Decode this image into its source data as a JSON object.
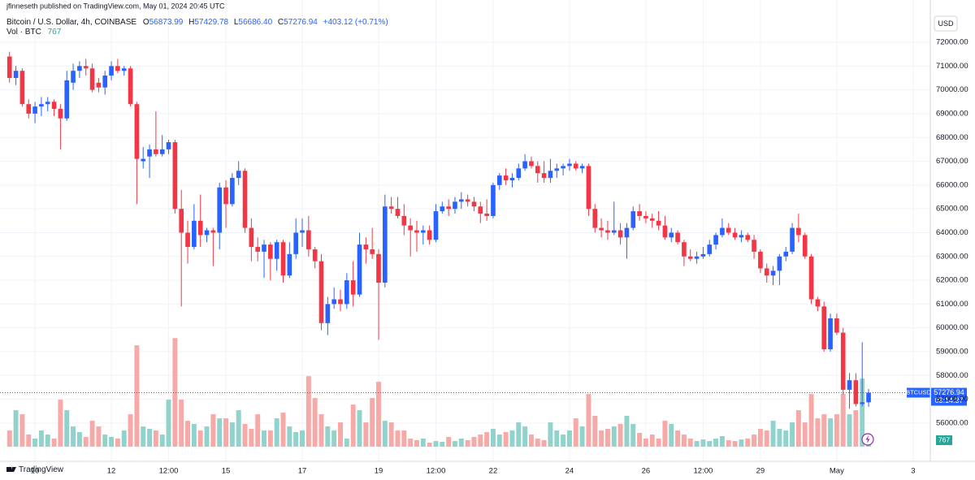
{
  "author_line": "jfinneseth published on TradingView.com, May 01, 2024 20:45 UTC",
  "brand": "TradingView",
  "chart_data": {
    "type": "candlestick",
    "title": "Bitcoin / U.S. Dollar, 4h, COINBASE",
    "ohlc_letters": [
      "O",
      "H",
      "L",
      "C"
    ],
    "last_value_labels": [
      "56873.99",
      "57429.78",
      "56686.40",
      "57276.94"
    ],
    "change": "+403.12 (+0.71%)",
    "volume_title": "Vol · BTC",
    "symbol": "BTCUSD",
    "countdown": "03:14:37",
    "currency": "USD",
    "up_color": "#2962ff",
    "down_color": "#f23645",
    "up_volume_color": "#92d2cc",
    "down_volume_color": "#f7a9a7",
    "grid": true,
    "xlim": [
      -1.5,
      144.7
    ],
    "ylim": [
      55008,
      73365
    ],
    "volume_lim": [
      0,
      25000
    ],
    "xticks": [
      {
        "value": 4,
        "label": "10"
      },
      {
        "value": 16,
        "label": "12"
      },
      {
        "value": 25,
        "label": "12:00"
      },
      {
        "value": 34,
        "label": "15"
      },
      {
        "value": 46,
        "label": "17"
      },
      {
        "value": 58,
        "label": "19"
      },
      {
        "value": 67,
        "label": "12:00"
      },
      {
        "value": 76,
        "label": "22"
      },
      {
        "value": 88,
        "label": "24"
      },
      {
        "value": 100,
        "label": "26"
      },
      {
        "value": 109,
        "label": "12:00"
      },
      {
        "value": 118,
        "label": "29"
      },
      {
        "value": 130,
        "label": "May"
      },
      {
        "value": 142,
        "label": "3"
      }
    ],
    "yticks": [
      {
        "value": 56000,
        "label": "56000.00"
      },
      {
        "value": 57000,
        "label": "57000.00"
      },
      {
        "value": 58000,
        "label": "58000.00"
      },
      {
        "value": 59000,
        "label": "59000.00"
      },
      {
        "value": 60000,
        "label": "60000.00"
      },
      {
        "value": 61000,
        "label": "61000.00"
      },
      {
        "value": 62000,
        "label": "62000.00"
      },
      {
        "value": 63000,
        "label": "63000.00"
      },
      {
        "value": 64000,
        "label": "64000.00"
      },
      {
        "value": 65000,
        "label": "65000.00"
      },
      {
        "value": 66000,
        "label": "66000.00"
      },
      {
        "value": 67000,
        "label": "67000.00"
      },
      {
        "value": 68000,
        "label": "68000.00"
      },
      {
        "value": 69000,
        "label": "69000.00"
      },
      {
        "value": 70000,
        "label": "70000.00"
      },
      {
        "value": 71000,
        "label": "71000.00"
      },
      {
        "value": 72000,
        "label": "72000.00"
      }
    ],
    "candles": [
      [
        71400,
        71600,
        70300,
        70500
      ],
      [
        70500,
        71000,
        70200,
        70800
      ],
      [
        70800,
        70900,
        69300,
        69400
      ],
      [
        69400,
        69600,
        68800,
        69000
      ],
      [
        69000,
        69500,
        68600,
        69300
      ],
      [
        69300,
        69700,
        68900,
        69400
      ],
      [
        69400,
        69700,
        69100,
        69500
      ],
      [
        69500,
        69600,
        68900,
        69200
      ],
      [
        69200,
        69400,
        67500,
        68800
      ],
      [
        68800,
        70800,
        68700,
        70400
      ],
      [
        70300,
        71100,
        70000,
        70800
      ],
      [
        70800,
        71200,
        70500,
        71000
      ],
      [
        71000,
        71300,
        70600,
        70900
      ],
      [
        70900,
        71100,
        69900,
        70000
      ],
      [
        70300,
        70500,
        69900,
        70100
      ],
      [
        70100,
        70800,
        69800,
        70600
      ],
      [
        70600,
        71200,
        70400,
        71000
      ],
      [
        71000,
        71300,
        70700,
        70800
      ],
      [
        70800,
        71000,
        70600,
        70900
      ],
      [
        70900,
        71000,
        69300,
        69400
      ],
      [
        69400,
        69500,
        65200,
        67100
      ],
      [
        67000,
        67600,
        66700,
        67100
      ],
      [
        67200,
        67700,
        66300,
        67500
      ],
      [
        67500,
        69100,
        67200,
        67300
      ],
      [
        67300,
        68100,
        67200,
        67500
      ],
      [
        67500,
        67900,
        67300,
        67800
      ],
      [
        67800,
        67900,
        64800,
        65000
      ],
      [
        65000,
        65800,
        60900,
        64000
      ],
      [
        64000,
        64500,
        62700,
        63400
      ],
      [
        63400,
        65200,
        63300,
        64500
      ],
      [
        64500,
        65600,
        63400,
        63900
      ],
      [
        63900,
        64200,
        63600,
        64100
      ],
      [
        64100,
        64200,
        62600,
        64000
      ],
      [
        64000,
        66100,
        63300,
        65900
      ],
      [
        65900,
        66200,
        64200,
        65200
      ],
      [
        65200,
        66500,
        65100,
        66300
      ],
      [
        66300,
        67000,
        66000,
        66600
      ],
      [
        66600,
        66700,
        64000,
        64200
      ],
      [
        64200,
        64600,
        62800,
        63400
      ],
      [
        63400,
        63800,
        62800,
        63200
      ],
      [
        63200,
        63700,
        62100,
        63500
      ],
      [
        63500,
        63600,
        62000,
        62900
      ],
      [
        62900,
        63700,
        62400,
        63600
      ],
      [
        63600,
        63700,
        61900,
        62200
      ],
      [
        62200,
        63600,
        62100,
        63100
      ],
      [
        63100,
        64600,
        62900,
        64000
      ],
      [
        64000,
        64600,
        63400,
        64100
      ],
      [
        64100,
        64700,
        63000,
        63300
      ],
      [
        63300,
        63400,
        62500,
        62800
      ],
      [
        62800,
        63100,
        59900,
        60200
      ],
      [
        60200,
        61300,
        59700,
        61000
      ],
      [
        61000,
        61700,
        60800,
        61200
      ],
      [
        61200,
        61600,
        60700,
        61000
      ],
      [
        61000,
        62300,
        60800,
        62000
      ],
      [
        62000,
        62800,
        60900,
        61400
      ],
      [
        61400,
        64000,
        61300,
        63500
      ],
      [
        63500,
        63800,
        62700,
        63300
      ],
      [
        63300,
        64200,
        62900,
        63100
      ],
      [
        63100,
        63300,
        59500,
        61900
      ],
      [
        61900,
        65600,
        61700,
        65100
      ],
      [
        65100,
        65500,
        64800,
        65000
      ],
      [
        65000,
        65500,
        64600,
        64700
      ],
      [
        64700,
        65200,
        63900,
        64300
      ],
      [
        64300,
        64600,
        63000,
        64100
      ],
      [
        64100,
        64500,
        63200,
        64000
      ],
      [
        64000,
        64300,
        63500,
        64100
      ],
      [
        64100,
        64300,
        63500,
        63700
      ],
      [
        63700,
        65200,
        63600,
        64900
      ],
      [
        64900,
        65300,
        64800,
        65100
      ],
      [
        65100,
        65400,
        64700,
        65000
      ],
      [
        65000,
        65500,
        64800,
        65300
      ],
      [
        65300,
        65700,
        65000,
        65400
      ],
      [
        65400,
        65600,
        65100,
        65300
      ],
      [
        65300,
        65500,
        64900,
        65100
      ],
      [
        65100,
        65300,
        64400,
        64800
      ],
      [
        64800,
        65400,
        64500,
        64700
      ],
      [
        64700,
        66100,
        64600,
        66000
      ],
      [
        66000,
        66500,
        65800,
        66400
      ],
      [
        66400,
        66700,
        66000,
        66200
      ],
      [
        66200,
        66500,
        65900,
        66300
      ],
      [
        66300,
        66900,
        66200,
        66700
      ],
      [
        66700,
        67300,
        66600,
        67000
      ],
      [
        67000,
        67200,
        66700,
        66800
      ],
      [
        66800,
        67000,
        66100,
        66500
      ],
      [
        66500,
        67000,
        66100,
        66300
      ],
      [
        66300,
        67100,
        66100,
        66600
      ],
      [
        66600,
        66900,
        66300,
        66700
      ],
      [
        66700,
        66900,
        66400,
        66800
      ],
      [
        66800,
        67100,
        66600,
        66900
      ],
      [
        66900,
        67000,
        66600,
        66700
      ],
      [
        66700,
        66900,
        66500,
        66800
      ],
      [
        66800,
        66900,
        64700,
        65000
      ],
      [
        65000,
        65200,
        64000,
        64200
      ],
      [
        64200,
        64600,
        63800,
        64100
      ],
      [
        64100,
        64500,
        63700,
        64000
      ],
      [
        64000,
        65300,
        63900,
        64100
      ],
      [
        64100,
        64400,
        63500,
        63800
      ],
      [
        63800,
        64400,
        62900,
        64200
      ],
      [
        64200,
        65100,
        64100,
        64900
      ],
      [
        64900,
        65200,
        64500,
        64700
      ],
      [
        64700,
        64900,
        64400,
        64600
      ],
      [
        64600,
        64800,
        64200,
        64500
      ],
      [
        64500,
        64900,
        64100,
        64300
      ],
      [
        64300,
        64700,
        63700,
        63800
      ],
      [
        63800,
        64200,
        63600,
        64000
      ],
      [
        64000,
        64100,
        63500,
        63600
      ],
      [
        63600,
        63700,
        62600,
        63000
      ],
      [
        63000,
        63300,
        62800,
        62900
      ],
      [
        62900,
        63200,
        62700,
        63000
      ],
      [
        63000,
        63400,
        62900,
        63100
      ],
      [
        63100,
        63700,
        63000,
        63500
      ],
      [
        63500,
        64000,
        63300,
        63900
      ],
      [
        63900,
        64600,
        63800,
        64200
      ],
      [
        64200,
        64400,
        63900,
        64000
      ],
      [
        64000,
        64200,
        63700,
        63800
      ],
      [
        63800,
        64100,
        63600,
        63900
      ],
      [
        63900,
        64000,
        63600,
        63700
      ],
      [
        63700,
        63900,
        62900,
        63200
      ],
      [
        63200,
        63300,
        62300,
        62500
      ],
      [
        62500,
        62700,
        61900,
        62200
      ],
      [
        62200,
        62600,
        61800,
        62400
      ],
      [
        62400,
        63100,
        61800,
        63000
      ],
      [
        63000,
        63400,
        62800,
        63200
      ],
      [
        63200,
        64400,
        63100,
        64200
      ],
      [
        64200,
        64800,
        63600,
        63900
      ],
      [
        63900,
        64000,
        62900,
        63000
      ],
      [
        63000,
        63100,
        61000,
        61200
      ],
      [
        61200,
        61300,
        60700,
        60900
      ],
      [
        60900,
        61100,
        59000,
        59100
      ],
      [
        59100,
        60600,
        59000,
        60400
      ],
      [
        60400,
        60600,
        59700,
        59800
      ],
      [
        59800,
        60000,
        57200,
        57400
      ],
      [
        57400,
        58100,
        56600,
        57800
      ],
      [
        57800,
        58100,
        56700,
        56800
      ],
      [
        56800,
        59400,
        56700,
        56874
      ],
      [
        56873.99,
        57429.78,
        56686.4,
        57276.94
      ]
    ],
    "volume": [
      1920,
      4320,
      3840,
      1440,
      960,
      1920,
      1440,
      960,
      5570,
      4320,
      2400,
      1730,
      1150,
      3070,
      2400,
      1440,
      1150,
      960,
      1920,
      3840,
      12000,
      2400,
      2110,
      1920,
      1440,
      5570,
      12860,
      5570,
      3070,
      2690,
      1920,
      2400,
      3840,
      3360,
      3360,
      2880,
      4320,
      2690,
      2110,
      3840,
      1920,
      1920,
      3360,
      4030,
      2400,
      1730,
      1920,
      8350,
      5760,
      3840,
      2400,
      1920,
      2880,
      960,
      4990,
      4320,
      2880,
      5760,
      7680,
      3070,
      2880,
      1920,
      1920,
      960,
      770,
      960,
      480,
      670,
      580,
      1150,
      670,
      960,
      770,
      1150,
      1440,
      1730,
      2110,
      1440,
      1730,
      1920,
      2880,
      2400,
      1440,
      960,
      770,
      2880,
      1920,
      1440,
      1920,
      3360,
      2400,
      6240,
      3650,
      1920,
      2110,
      2400,
      2690,
      3650,
      2690,
      1630,
      960,
      1440,
      960,
      3070,
      2690,
      1920,
      1440,
      960,
      670,
      860,
      670,
      960,
      1250,
      770,
      670,
      860,
      960,
      1440,
      2110,
      1920,
      3070,
      2110,
      1920,
      2880,
      4320,
      2880,
      6240,
      3360,
      3840,
      3360,
      3840,
      6240,
      3840,
      4320,
      8060,
      767
    ]
  }
}
